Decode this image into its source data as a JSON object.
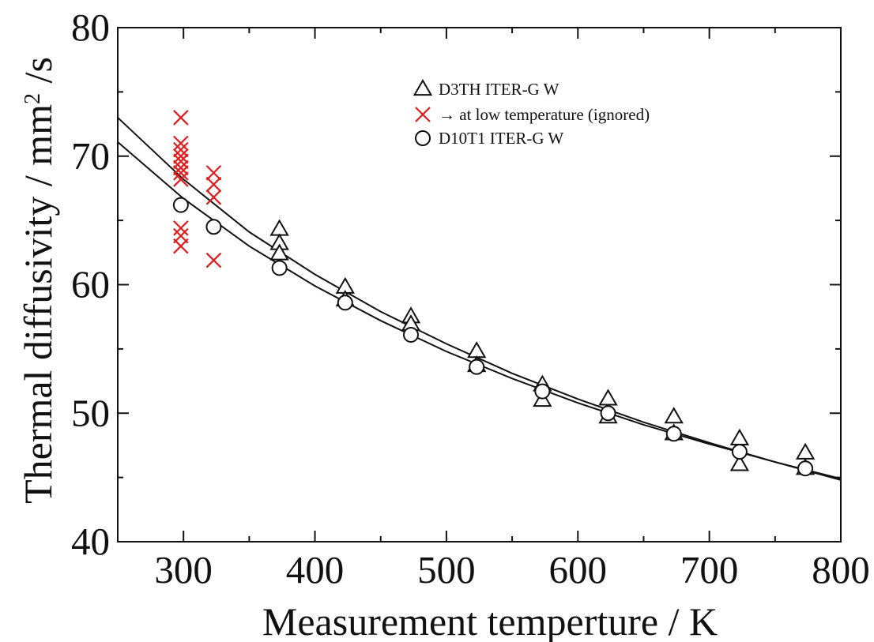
{
  "chart_data": {
    "type": "scatter",
    "title": "",
    "xlabel": "Measurement temperture / K",
    "ylabel_main": "Thermal diffusivity / mm",
    "ylabel_superscript": "2",
    "ylabel_suffix": "/s",
    "xlim": [
      250,
      800
    ],
    "ylim": [
      40,
      80
    ],
    "x_ticks": [
      300,
      400,
      500,
      600,
      700,
      800
    ],
    "y_ticks": [
      40,
      50,
      60,
      70,
      80
    ],
    "grid": false,
    "legend_position": "top-right",
    "colors": {
      "black": "#111111",
      "red": "#e11b1b",
      "white": "#ffffff"
    },
    "series": [
      {
        "name": "D3TH ITER-G W",
        "marker": "triangle",
        "points": [
          {
            "x": 373,
            "y": 64.3
          },
          {
            "x": 373,
            "y": 63.2
          },
          {
            "x": 373,
            "y": 62.4
          },
          {
            "x": 423,
            "y": 59.8
          },
          {
            "x": 423,
            "y": 58.8
          },
          {
            "x": 473,
            "y": 57.5
          },
          {
            "x": 473,
            "y": 56.9
          },
          {
            "x": 523,
            "y": 54.8
          },
          {
            "x": 523,
            "y": 53.7
          },
          {
            "x": 573,
            "y": 52.2
          },
          {
            "x": 573,
            "y": 51.0
          },
          {
            "x": 623,
            "y": 51.1
          },
          {
            "x": 623,
            "y": 49.7
          },
          {
            "x": 673,
            "y": 49.7
          },
          {
            "x": 673,
            "y": 48.4
          },
          {
            "x": 723,
            "y": 48.0
          },
          {
            "x": 723,
            "y": 46.0
          },
          {
            "x": 773,
            "y": 46.9
          },
          {
            "x": 773,
            "y": 45.7
          }
        ]
      },
      {
        "name": "→ at low temperature (ignored)",
        "marker": "cross",
        "points": [
          {
            "x": 298,
            "y": 73.0
          },
          {
            "x": 298,
            "y": 71.0
          },
          {
            "x": 298,
            "y": 70.5
          },
          {
            "x": 298,
            "y": 70.0
          },
          {
            "x": 298,
            "y": 69.6
          },
          {
            "x": 298,
            "y": 69.1
          },
          {
            "x": 298,
            "y": 68.7
          },
          {
            "x": 298,
            "y": 68.2
          },
          {
            "x": 298,
            "y": 64.4
          },
          {
            "x": 298,
            "y": 63.8
          },
          {
            "x": 298,
            "y": 63.0
          },
          {
            "x": 323,
            "y": 68.7
          },
          {
            "x": 323,
            "y": 67.8
          },
          {
            "x": 323,
            "y": 66.8
          },
          {
            "x": 323,
            "y": 61.9
          }
        ]
      },
      {
        "name": "D10T1 ITER-G W",
        "marker": "circle",
        "points": [
          {
            "x": 298,
            "y": 66.2
          },
          {
            "x": 323,
            "y": 64.5
          },
          {
            "x": 373,
            "y": 61.3
          },
          {
            "x": 423,
            "y": 58.6
          },
          {
            "x": 473,
            "y": 56.1
          },
          {
            "x": 523,
            "y": 53.6
          },
          {
            "x": 573,
            "y": 51.7
          },
          {
            "x": 623,
            "y": 50.0
          },
          {
            "x": 673,
            "y": 48.4
          },
          {
            "x": 723,
            "y": 47.0
          },
          {
            "x": 773,
            "y": 45.7
          }
        ]
      },
      {
        "name": "",
        "type": "line",
        "points": [
          {
            "x": 250,
            "y": 73.0
          },
          {
            "x": 300,
            "y": 68.2
          },
          {
            "x": 350,
            "y": 64.1
          },
          {
            "x": 400,
            "y": 60.8
          },
          {
            "x": 450,
            "y": 57.9
          },
          {
            "x": 500,
            "y": 55.4
          },
          {
            "x": 550,
            "y": 53.1
          },
          {
            "x": 600,
            "y": 51.1
          },
          {
            "x": 650,
            "y": 49.3
          },
          {
            "x": 700,
            "y": 47.7
          },
          {
            "x": 750,
            "y": 46.2
          },
          {
            "x": 800,
            "y": 44.8
          }
        ]
      },
      {
        "name": "",
        "type": "line",
        "points": [
          {
            "x": 250,
            "y": 71.1
          },
          {
            "x": 300,
            "y": 66.7
          },
          {
            "x": 350,
            "y": 63.0
          },
          {
            "x": 400,
            "y": 59.9
          },
          {
            "x": 450,
            "y": 57.2
          },
          {
            "x": 500,
            "y": 54.8
          },
          {
            "x": 550,
            "y": 52.7
          },
          {
            "x": 600,
            "y": 50.8
          },
          {
            "x": 650,
            "y": 49.1
          },
          {
            "x": 700,
            "y": 47.6
          },
          {
            "x": 750,
            "y": 46.2
          },
          {
            "x": 800,
            "y": 44.9
          }
        ]
      }
    ]
  }
}
